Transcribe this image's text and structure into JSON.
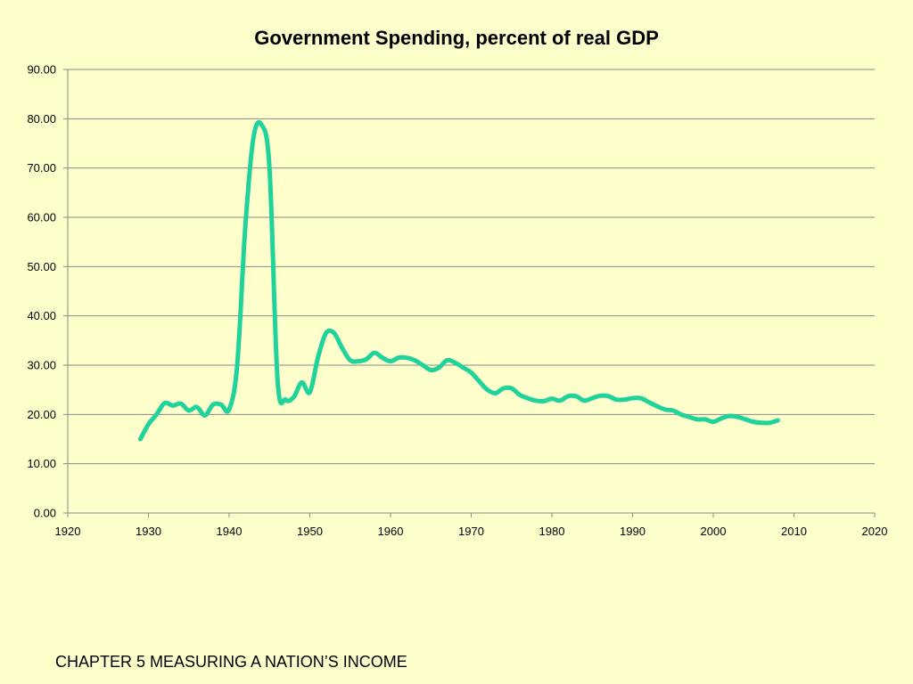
{
  "footer": {
    "text": "CHAPTER 5 MEASURING A NATION’S INCOME"
  },
  "chart_data": {
    "type": "line",
    "title": "Government Spending, percent of real GDP",
    "xlabel": "",
    "ylabel": "",
    "xlim": [
      1920,
      2020
    ],
    "ylim": [
      0,
      90
    ],
    "x_ticks": [
      1920,
      1930,
      1940,
      1950,
      1960,
      1970,
      1980,
      1990,
      2000,
      2010,
      2020
    ],
    "y_ticks": [
      "0.00",
      "10.00",
      "20.00",
      "30.00",
      "40.00",
      "50.00",
      "60.00",
      "70.00",
      "80.00",
      "90.00"
    ],
    "grid": "horizontal",
    "legend": "none",
    "series": [
      {
        "color": "#1FD39A",
        "x": [
          1929,
          1930,
          1931,
          1932,
          1933,
          1934,
          1935,
          1936,
          1937,
          1938,
          1939,
          1940,
          1941,
          1942,
          1943,
          1944,
          1945,
          1946,
          1947,
          1948,
          1949,
          1950,
          1951,
          1952,
          1953,
          1954,
          1955,
          1956,
          1957,
          1958,
          1959,
          1960,
          1961,
          1962,
          1963,
          1964,
          1965,
          1966,
          1967,
          1968,
          1969,
          1970,
          1971,
          1972,
          1973,
          1974,
          1975,
          1976,
          1977,
          1978,
          1979,
          1980,
          1981,
          1982,
          1983,
          1984,
          1985,
          1986,
          1987,
          1988,
          1989,
          1990,
          1991,
          1992,
          1993,
          1994,
          1995,
          1996,
          1997,
          1998,
          1999,
          2000,
          2001,
          2002,
          2003,
          2004,
          2005,
          2006,
          2007,
          2008
        ],
        "values": [
          15.0,
          18.0,
          20.0,
          22.3,
          21.8,
          22.2,
          20.8,
          21.5,
          19.8,
          22.0,
          22.0,
          21.0,
          30.0,
          58.0,
          76.0,
          78.8,
          70.0,
          27.0,
          23.0,
          23.5,
          26.5,
          24.5,
          31.5,
          36.5,
          36.5,
          33.5,
          31.0,
          30.8,
          31.2,
          32.5,
          31.5,
          30.8,
          31.5,
          31.5,
          31.0,
          30.0,
          29.0,
          29.5,
          31.0,
          30.5,
          29.5,
          28.5,
          26.7,
          25.0,
          24.3,
          25.3,
          25.3,
          24.0,
          23.3,
          22.8,
          22.7,
          23.2,
          22.8,
          23.7,
          23.7,
          22.8,
          23.3,
          23.8,
          23.7,
          23.0,
          23.0,
          23.3,
          23.3,
          22.5,
          21.7,
          21.0,
          20.8,
          20.0,
          19.5,
          19.0,
          19.0,
          18.5,
          19.2,
          19.7,
          19.5,
          19.0,
          18.5,
          18.3,
          18.3,
          18.8
        ]
      }
    ]
  }
}
